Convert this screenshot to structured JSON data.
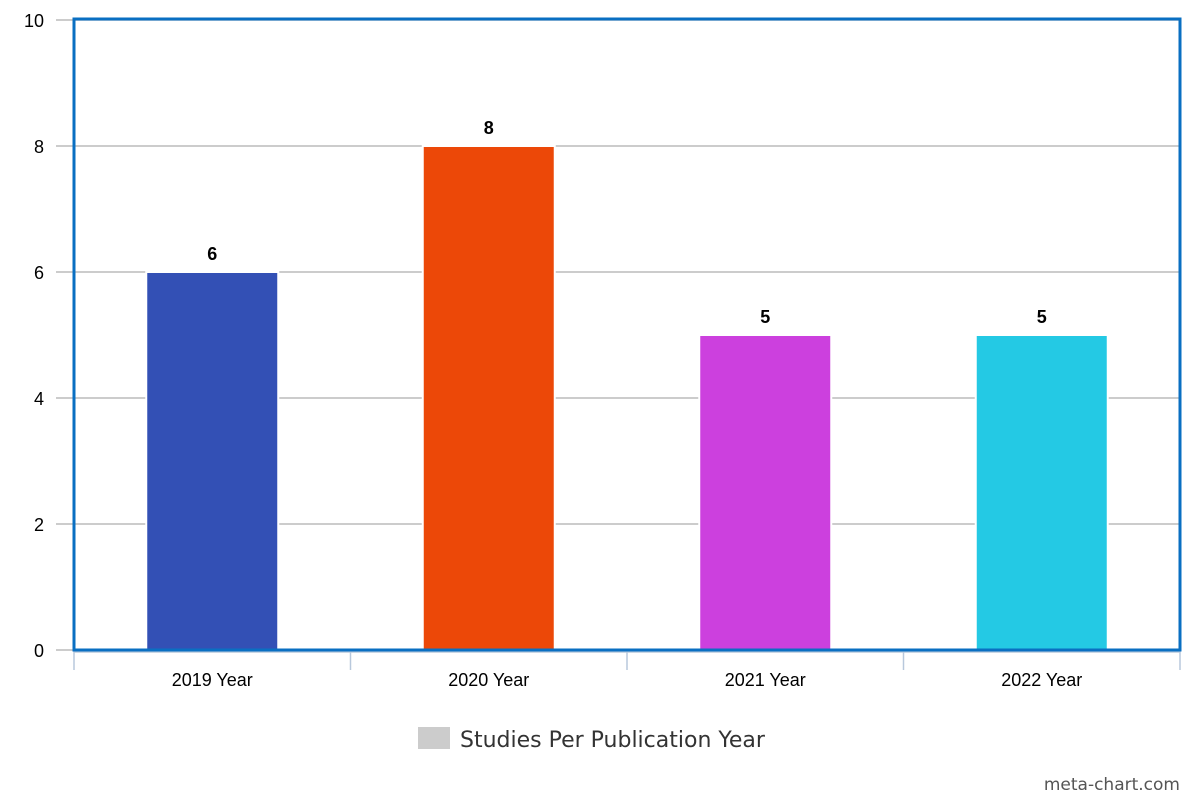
{
  "chart_data": {
    "type": "bar",
    "categories": [
      "2019 Year",
      "2020 Year",
      "2021 Year",
      "2022 Year"
    ],
    "series": [
      {
        "name": "Studies Per Publication Year",
        "values": [
          6,
          8,
          5,
          5
        ]
      }
    ],
    "bar_colors": [
      "#3350b5",
      "#ec4808",
      "#cc40de",
      "#24c9e4"
    ],
    "data_labels": [
      "6",
      "8",
      "5",
      "5"
    ],
    "y_ticks": [
      "0",
      "2",
      "4",
      "6",
      "8",
      "10"
    ],
    "ylim": [
      0,
      10
    ],
    "grid": true,
    "legend_position": "bottom-center",
    "legend_swatch_color": "#cccccc",
    "plot_border_color": "#0a6fc2",
    "gridline_color": "#bbbbbb",
    "title": "",
    "xlabel": "",
    "ylabel": ""
  },
  "watermark": "meta-chart.com"
}
